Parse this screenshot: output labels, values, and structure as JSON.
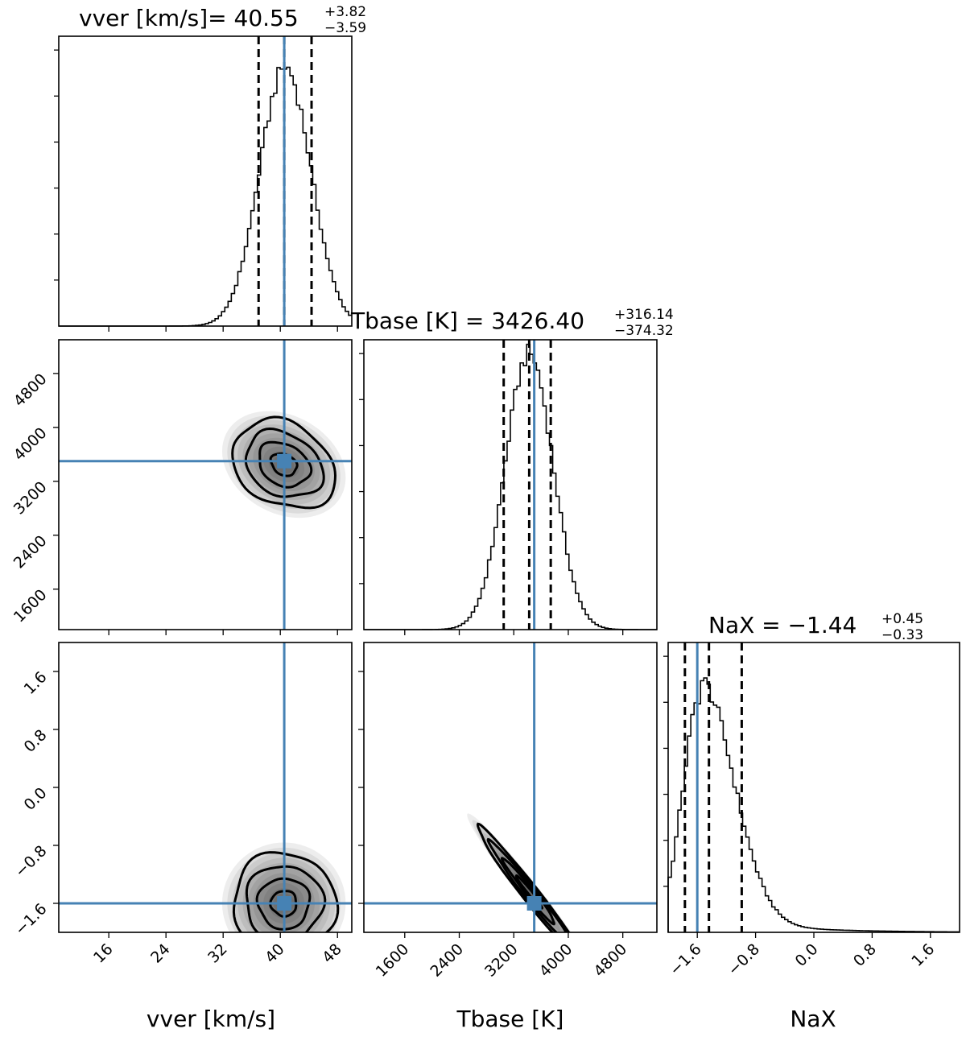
{
  "figure": {
    "type": "corner-plot"
  },
  "colors": {
    "truth": "#4682b4",
    "quantile": "#000000",
    "hist": "#000000",
    "contour": "#000000"
  },
  "chart_data": {
    "type": "corner",
    "parameters": [
      {
        "name": "vver",
        "label": "vver [km/s]",
        "range": [
          9,
          50
        ],
        "ticks": [
          "16",
          "24",
          "32",
          "40",
          "48"
        ],
        "tick_values": [
          16,
          24,
          32,
          40,
          48
        ],
        "truth": 40.55,
        "title": {
          "main": "vver [km/s]= 40.55",
          "sup": "+3.82",
          "sub": "−3.59"
        },
        "quantiles": [
          36.96,
          40.55,
          44.37
        ],
        "peak": 40.7,
        "sigma": 3.6,
        "hist_max": 1.12,
        "histogram_shape": "gaussian"
      },
      {
        "name": "Tbase",
        "label": "Tbase [K]",
        "range": [
          1000,
          5300
        ],
        "ticks": [
          "1600",
          "2400",
          "3200",
          "4000",
          "4800"
        ],
        "tick_values": [
          1600,
          2400,
          3200,
          4000,
          4800
        ],
        "ylabel_ticks": [
          "1600",
          "2400",
          "3200",
          "4000",
          "4800"
        ],
        "truth": 3500,
        "title": {
          "main": "Tbase [K] = 3426.40",
          "sup": "+316.14",
          "sub": "−374.32"
        },
        "quantiles": [
          3052.08,
          3426.4,
          3742.54
        ],
        "peak": 3426,
        "sigma": 350,
        "hist_max": 1.05,
        "histogram_shape": "gaussian"
      },
      {
        "name": "NaX",
        "label": "NaX",
        "range": [
          -2.0,
          2.0
        ],
        "ticks": [
          "−1.6",
          "−0.8",
          "0.0",
          "0.8",
          "1.6"
        ],
        "tick_values": [
          -1.6,
          -0.8,
          0.0,
          0.8,
          1.6
        ],
        "truth": -1.6,
        "title": {
          "main": "NaX = −1.44",
          "sup": "+0.45",
          "sub": "−0.33"
        },
        "quantiles": [
          -1.77,
          -1.44,
          -0.99
        ],
        "peak": -1.55,
        "sigma_left": 0.25,
        "sigma_right": 0.45,
        "hist_max": 1.15,
        "histogram_shape": "skewed-right"
      }
    ],
    "pairs": [
      {
        "x": "vver",
        "y": "Tbase",
        "center": [
          40.5,
          3450
        ],
        "spread": [
          3.6,
          330
        ],
        "correlation": -0.25
      },
      {
        "x": "vver",
        "y": "NaX",
        "center": [
          40.5,
          -1.6
        ],
        "spread": [
          3.6,
          0.35
        ],
        "correlation": 0.0
      },
      {
        "x": "Tbase",
        "y": "NaX",
        "center": [
          3426,
          -1.44
        ],
        "spread": [
          380,
          0.45
        ],
        "correlation": -0.98
      }
    ],
    "contour_levels": [
      0.118,
      0.393,
      0.675,
      0.865
    ],
    "grid": false,
    "legend": "none"
  }
}
